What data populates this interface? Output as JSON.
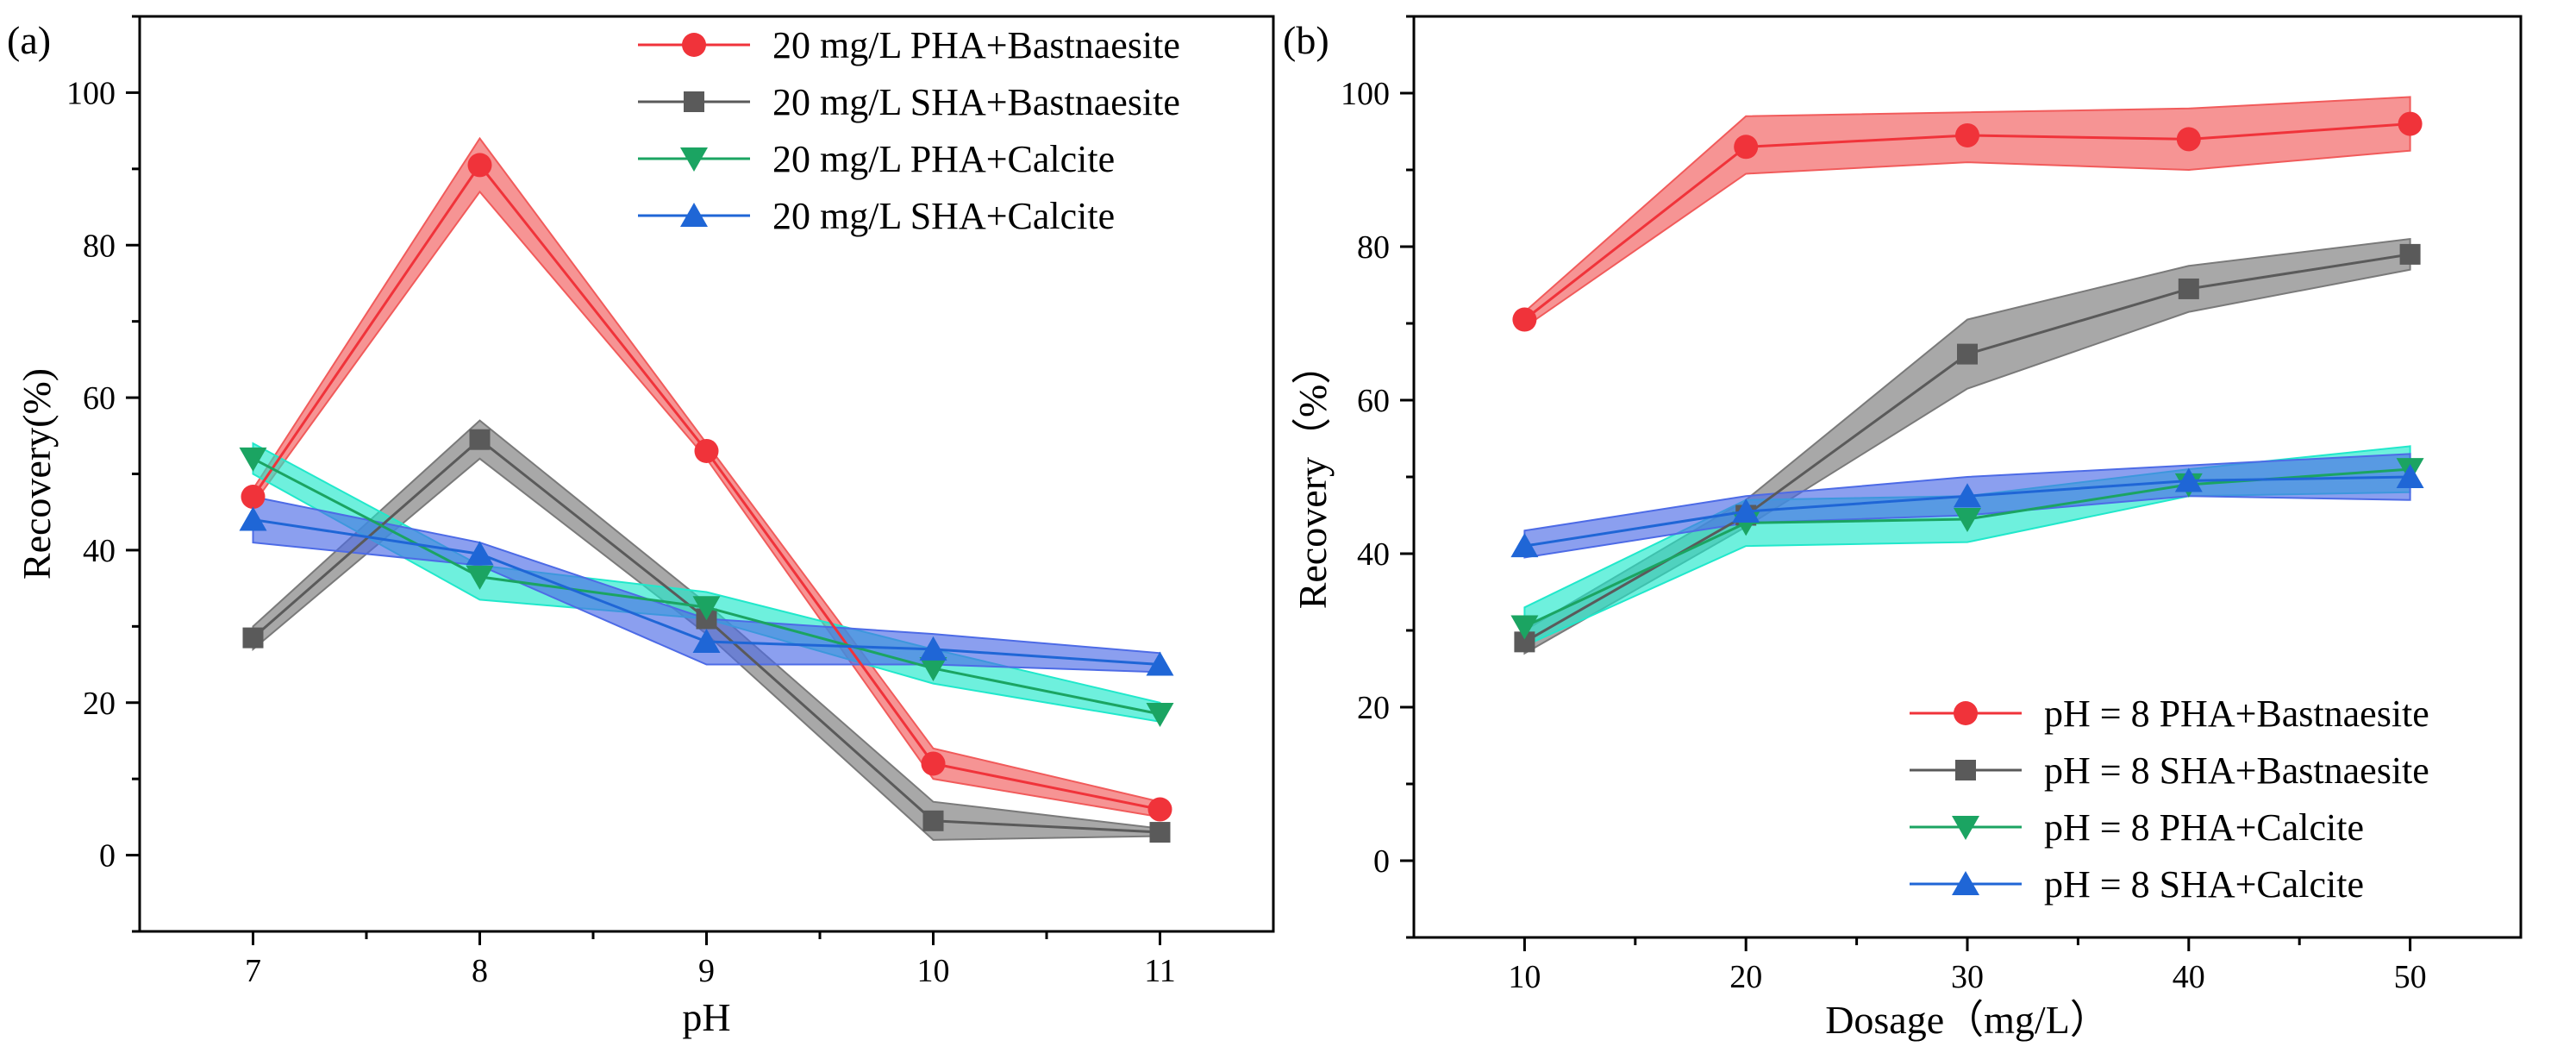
{
  "chart_data": [
    {
      "type": "line",
      "panel_label": "(a)",
      "xlabel": "pH",
      "ylabel": "Recovery(%)",
      "xlim": [
        6.5,
        11.5
      ],
      "ylim": [
        -10,
        110
      ],
      "x": [
        7,
        8,
        9,
        10,
        11
      ],
      "xticks": [
        7,
        8,
        9,
        10,
        11
      ],
      "yticks": [
        0,
        20,
        40,
        60,
        80,
        100
      ],
      "legend_position": "top-right",
      "series": [
        {
          "name": "20 mg/L PHA+Bastnaesite",
          "color": "#f0333a",
          "band_color": "#f15b5b",
          "marker": "circle",
          "values": [
            47,
            90.5,
            53,
            12,
            6
          ],
          "band_lower": [
            46,
            87,
            52,
            10,
            5
          ],
          "band_upper": [
            48,
            94,
            54,
            14,
            7
          ]
        },
        {
          "name": "20 mg/L SHA+Bastnaesite",
          "color": "#5a5a5a",
          "band_color": "#7a7a7a",
          "marker": "square",
          "values": [
            28.5,
            54.5,
            31,
            4.5,
            3
          ],
          "band_lower": [
            27,
            52,
            29,
            2,
            2.5
          ],
          "band_upper": [
            30,
            57,
            33,
            7,
            3.5
          ]
        },
        {
          "name": "20 mg/L PHA+Calcite",
          "color": "#1ba462",
          "band_color": "#21e8cb",
          "marker": "triangle-down",
          "values": [
            52,
            36.5,
            32.5,
            24.5,
            18.5
          ],
          "band_lower": [
            50,
            33.5,
            31,
            22.5,
            17.5
          ],
          "band_upper": [
            54,
            38,
            34.5,
            27,
            20
          ]
        },
        {
          "name": "20 mg/L SHA+Calcite",
          "color": "#1f66d6",
          "band_color": "#4d6be6",
          "marker": "triangle-up",
          "values": [
            44,
            39.5,
            28,
            27,
            25
          ],
          "band_lower": [
            41,
            38,
            25,
            25,
            24
          ],
          "band_upper": [
            47,
            41,
            31,
            29,
            26.5
          ]
        }
      ]
    },
    {
      "type": "line",
      "panel_label": "(b)",
      "xlabel": "Dosage（mg/L）",
      "ylabel": "Recovery（%）",
      "xlim": [
        5,
        55
      ],
      "ylim": [
        -10,
        110
      ],
      "x": [
        10,
        20,
        30,
        40,
        50
      ],
      "xticks": [
        10,
        20,
        30,
        40,
        50
      ],
      "yticks": [
        0,
        20,
        40,
        60,
        80,
        100
      ],
      "legend_position": "bottom-right",
      "series": [
        {
          "name": "pH = 8 PHA+Bastnaesite",
          "color": "#f0333a",
          "band_color": "#f15b5b",
          "marker": "circle",
          "values": [
            70.5,
            93,
            94.5,
            94,
            96
          ],
          "band_lower": [
            69.5,
            89.5,
            91,
            90,
            92.5
          ],
          "band_upper": [
            71.5,
            97,
            97.5,
            98,
            99.5
          ]
        },
        {
          "name": "pH = 8 SHA+Bastnaesite",
          "color": "#5a5a5a",
          "band_color": "#7a7a7a",
          "marker": "square",
          "values": [
            28.5,
            45,
            66,
            74.5,
            79
          ],
          "band_lower": [
            27,
            43.5,
            61.5,
            71.5,
            77
          ],
          "band_upper": [
            30,
            47,
            70.5,
            77.5,
            81
          ]
        },
        {
          "name": "pH = 8 PHA+Calcite",
          "color": "#1ba462",
          "band_color": "#21e8cb",
          "marker": "triangle-down",
          "values": [
            30.5,
            44,
            44.5,
            49,
            51
          ],
          "band_lower": [
            28,
            41,
            41.5,
            47.5,
            48
          ],
          "band_upper": [
            33,
            47,
            47.5,
            51,
            54
          ]
        },
        {
          "name": "pH = 8 SHA+Calcite",
          "color": "#1f66d6",
          "band_color": "#4d6be6",
          "marker": "triangle-up",
          "values": [
            41,
            45.5,
            47.5,
            49.5,
            50
          ],
          "band_lower": [
            39.5,
            44,
            45,
            47.5,
            47
          ],
          "band_upper": [
            43,
            47.5,
            50,
            51.5,
            53
          ]
        }
      ]
    }
  ]
}
